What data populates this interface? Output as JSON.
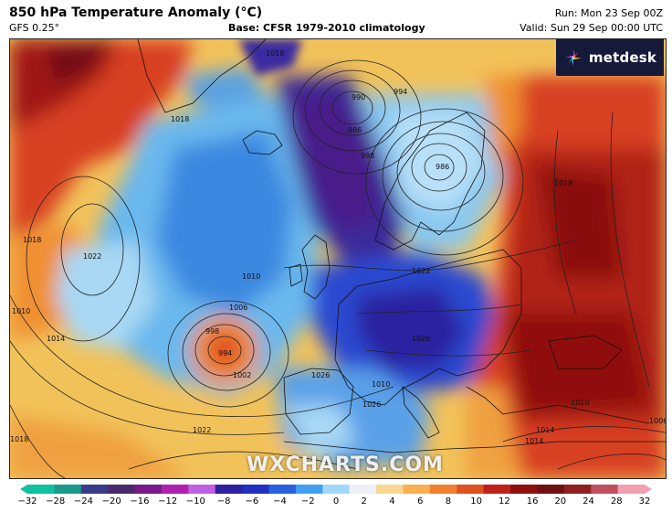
{
  "header": {
    "title": "850 hPa Temperature Anomaly (°C)",
    "model": "GFS 0.25°",
    "base": "Base: CFSR 1979-2010 climatology",
    "run": "Run: Mon 23 Sep 00Z",
    "valid": "Valid: Sun 29 Sep 00:00 UTC"
  },
  "logo": {
    "text": "metdesk",
    "icon": "metdesk-pinwheel-icon"
  },
  "watermark": "WXCHARTS.COM",
  "colorbar": {
    "labels": [
      "−32",
      "−28",
      "−24",
      "−20",
      "−16",
      "−12",
      "−10",
      "−8",
      "−6",
      "−4",
      "−2",
      "0",
      "2",
      "4",
      "6",
      "8",
      "10",
      "12",
      "16",
      "20",
      "24",
      "28",
      "32"
    ],
    "colors": [
      "#10c0a0",
      "#1a9a8a",
      "#3a3a8a",
      "#4a2a6a",
      "#7a1a8a",
      "#b020b0",
      "#c060e0",
      "#3020a0",
      "#2030c0",
      "#2860e0",
      "#40a0f0",
      "#a0d8f8",
      "#f0f0f8",
      "#f8d890",
      "#f8b050",
      "#f08030",
      "#e05020",
      "#c02018",
      "#901010",
      "#701010",
      "#902020",
      "#c05060",
      "#f0a0b0"
    ]
  },
  "isobar_labels": [
    "990",
    "986",
    "994",
    "986",
    "998",
    "1010",
    "1018",
    "1022",
    "1014",
    "1018",
    "1010",
    "1006",
    "998",
    "994",
    "1002",
    "1010",
    "1014",
    "1018",
    "1022",
    "1026",
    "1026",
    "1022",
    "1018",
    "1010",
    "1014",
    "1006",
    "1018",
    "1026"
  ],
  "colors": {
    "cold_deep": "#3a1a8a",
    "cold": "#2a4ad0",
    "cool": "#4aa0e8",
    "cool_light": "#a8d8f4",
    "neutral": "#e8f0f8",
    "warm_light": "#f8d070",
    "warm": "#f09030",
    "hot": "#d84020",
    "very_hot": "#a01818"
  }
}
